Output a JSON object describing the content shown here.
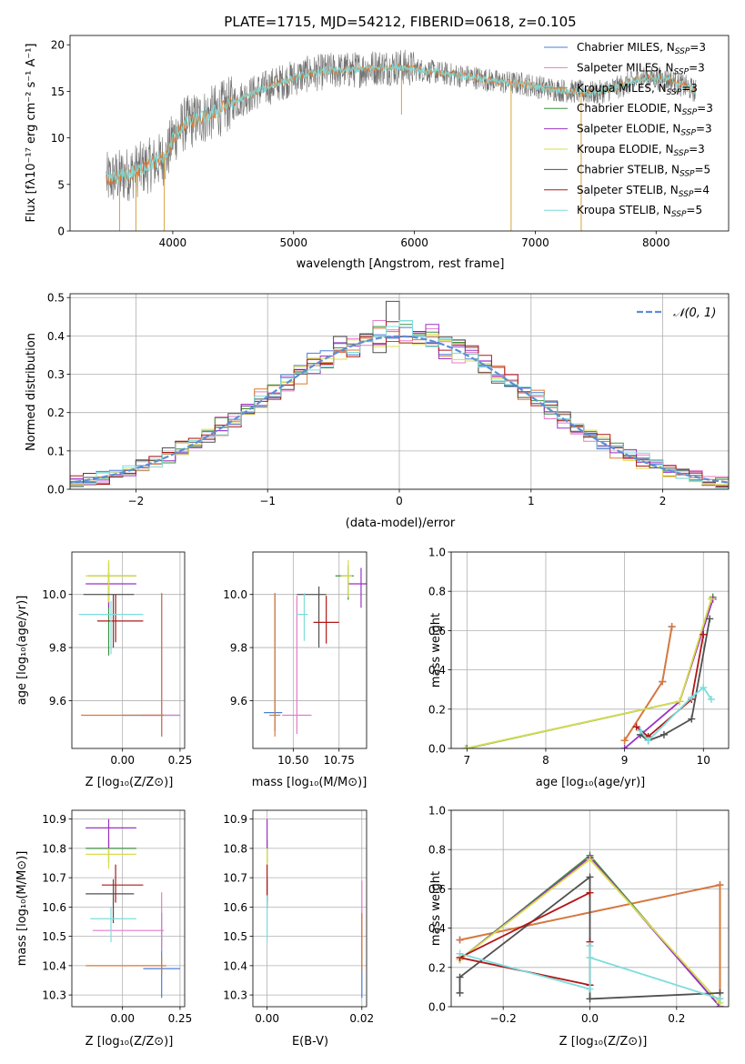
{
  "figure_title": "PLATE=1715, MJD=54212, FIBERID=0618, z=0.105",
  "colors": {
    "chabrier_miles": "#4a7fd6",
    "salpeter_miles": "#e67bc8",
    "kroupa_miles": "#d97a33",
    "chabrier_elodie": "#3f8f3f",
    "salpeter_elodie": "#9a33c4",
    "kroupa_elodie": "#d8dc4e",
    "chabrier_stelib": "#505050",
    "salpeter_stelib": "#b01818",
    "kroupa_stelib": "#7ddcdc",
    "gauss": "#5b8fd6"
  },
  "chart_data": [
    {
      "id": "spectrum",
      "type": "line",
      "title": "PLATE=1715, MJD=54212, FIBERID=0618, z=0.105",
      "xlabel": "wavelength [Angstrom, rest frame]",
      "ylabel": "Flux [fλ10⁻¹⁷ erg cm⁻² s⁻¹ A⁻¹]",
      "xlim": [
        3150,
        8600
      ],
      "ylim": [
        0,
        21
      ],
      "xticks": [
        "4000",
        "5000",
        "6000",
        "7000",
        "8000"
      ],
      "yticks": [
        "0",
        "5",
        "10",
        "15",
        "20"
      ],
      "legend_position": "upper-right",
      "series": [
        {
          "name": "Chabrier MILES, N_SSP=3",
          "color_key": "chabrier_miles"
        },
        {
          "name": "Salpeter MILES, N_SSP=3",
          "color_key": "salpeter_miles"
        },
        {
          "name": "Kroupa MILES, N_SSP=3",
          "color_key": "kroupa_miles"
        },
        {
          "name": "Chabrier ELODIE, N_SSP=3",
          "color_key": "chabrier_elodie"
        },
        {
          "name": "Salpeter ELODIE, N_SSP=3",
          "color_key": "salpeter_elodie"
        },
        {
          "name": "Kroupa ELODIE, N_SSP=3",
          "color_key": "kroupa_elodie"
        },
        {
          "name": "Chabrier STELIB, N_SSP=5",
          "color_key": "chabrier_stelib"
        },
        {
          "name": "Salpeter STELIB, N_SSP=4",
          "color_key": "salpeter_stelib"
        },
        {
          "name": "Kroupa STELIB, N_SSP=5",
          "color_key": "kroupa_stelib"
        }
      ],
      "continuum": {
        "x": [
          3450,
          3600,
          3800,
          3950,
          4000,
          4100,
          4300,
          4500,
          4700,
          4900,
          5100,
          5300,
          5500,
          5700,
          5900,
          6100,
          6300,
          6500,
          6700,
          6900,
          7100,
          7300,
          7500,
          7700,
          7900,
          8100,
          8330
        ],
        "y": [
          5.5,
          6,
          7,
          8,
          10,
          11.5,
          12.5,
          13.8,
          15,
          16,
          16.8,
          17.2,
          17.3,
          17.6,
          17.6,
          17.2,
          16.8,
          16.5,
          16.0,
          15.8,
          15.3,
          15.0,
          14.8,
          15.5,
          16.5,
          16.3,
          15.0
        ]
      },
      "dips": [
        {
          "x": 3560,
          "y": 0.0
        },
        {
          "x": 3695,
          "y": 0.0
        },
        {
          "x": 3930,
          "y": 0.0
        },
        {
          "x": 5893,
          "y": 12.5
        },
        {
          "x": 6800,
          "y": 0.0
        },
        {
          "x": 7380,
          "y": 0.0
        }
      ]
    },
    {
      "id": "residuals",
      "type": "line",
      "xlabel": "(data-model)/error",
      "ylabel": "Normed distribution",
      "xlim": [
        -2.5,
        2.5
      ],
      "ylim": [
        0,
        0.51
      ],
      "xticks": [
        "−2",
        "−1",
        "0",
        "1",
        "2"
      ],
      "yticks": [
        "0.0",
        "0.1",
        "0.2",
        "0.3",
        "0.4",
        "0.5"
      ],
      "legend": "𝒩(0, 1)",
      "legend_position": "upper-right",
      "gaussian": {
        "mean": 0,
        "sigma": 1
      }
    },
    {
      "id": "age_vs_Z",
      "type": "scatter",
      "xlabel": "Z [log₁₀(Z/Z⊙)]",
      "ylabel": "age  [log₁₀(age/yr)]",
      "xlim": [
        -0.22,
        0.27
      ],
      "ylim": [
        9.42,
        10.16
      ],
      "xticks": [
        "0.00",
        "0.25"
      ],
      "yticks": [
        "9.6",
        "9.8",
        "10.0"
      ],
      "points": [
        {
          "series": "Chabrier MILES, N_SSP=3",
          "x": 0.17,
          "y": 9.545,
          "x_err": [
            0.17,
            0.08
          ],
          "y_err": [
            0.08,
            0.46
          ]
        },
        {
          "series": "Salpeter MILES, N_SSP=3",
          "x": 0.17,
          "y": 9.545,
          "x_err": [
            0.09,
            0.08
          ],
          "y_err": [
            0.08,
            0.45
          ]
        },
        {
          "series": "Kroupa MILES, N_SSP=3",
          "x": 0.17,
          "y": 9.545,
          "x_err": [
            0.35,
            0.01
          ],
          "y_err": [
            0.08,
            0.46
          ]
        },
        {
          "series": "Chabrier ELODIE, N_SSP=3",
          "x": -0.06,
          "y": 10.07,
          "x_err": [
            0.09,
            0.12
          ],
          "y_err": [
            0.3,
            0.05
          ]
        },
        {
          "series": "Salpeter ELODIE, N_SSP=3",
          "x": -0.06,
          "y": 10.04,
          "x_err": [
            0.1,
            0.12
          ],
          "y_err": [
            0.09,
            0.04
          ]
        },
        {
          "series": "Kroupa ELODIE, N_SSP=3",
          "x": -0.06,
          "y": 10.07,
          "x_err": [
            0.1,
            0.12
          ],
          "y_err": [
            0.1,
            0.06
          ]
        },
        {
          "series": "Chabrier STELIB, N_SSP=5",
          "x": -0.04,
          "y": 10.0,
          "x_err": [
            0.13,
            0.09
          ],
          "y_err": [
            0.2,
            0.0
          ]
        },
        {
          "series": "Salpeter STELIB, N_SSP=4",
          "x": -0.03,
          "y": 9.9,
          "x_err": [
            0.08,
            0.12
          ],
          "y_err": [
            0.08,
            0.1
          ]
        },
        {
          "series": "Kroupa STELIB, N_SSP=5",
          "x": -0.05,
          "y": 9.925,
          "x_err": [
            0.14,
            0.14
          ],
          "y_err": [
            0.15,
            0.05
          ]
        }
      ]
    },
    {
      "id": "age_vs_mass",
      "type": "scatter",
      "xlabel": "mass [log₁₀(M/M⊙)]",
      "ylabel": "",
      "xlim": [
        10.28,
        10.9
      ],
      "ylim": [
        9.42,
        10.16
      ],
      "xticks": [
        "10.50",
        "10.75"
      ],
      "yticks": [
        "9.6",
        "9.8",
        "10.0"
      ],
      "points": [
        {
          "series": "Chabrier MILES, N_SSP=3",
          "x": 10.4,
          "y": 9.555,
          "x_err": [
            0.06,
            0.04
          ],
          "y_err": [
            0.07,
            0.45
          ]
        },
        {
          "series": "Salpeter MILES, N_SSP=3",
          "x": 10.52,
          "y": 9.545,
          "x_err": [
            0.08,
            0.08
          ],
          "y_err": [
            0.07,
            0.45
          ]
        },
        {
          "series": "Kroupa MILES, N_SSP=3",
          "x": 10.4,
          "y": 9.545,
          "x_err": [
            0.03,
            0.03
          ],
          "y_err": [
            0.08,
            0.46
          ]
        },
        {
          "series": "Chabrier ELODIE, N_SSP=3",
          "x": 10.8,
          "y": 10.07,
          "x_err": [
            0.07,
            0.03
          ],
          "y_err": [
            0.09,
            0.04
          ]
        },
        {
          "series": "Salpeter ELODIE, N_SSP=3",
          "x": 10.87,
          "y": 10.04,
          "x_err": [
            0.07,
            0.03
          ],
          "y_err": [
            0.09,
            0.06
          ]
        },
        {
          "series": "Kroupa ELODIE, N_SSP=3",
          "x": 10.8,
          "y": 10.07,
          "x_err": [
            0.04,
            0.02
          ],
          "y_err": [
            0.08,
            0.06
          ]
        },
        {
          "series": "Chabrier STELIB, N_SSP=5",
          "x": 10.64,
          "y": 10.0,
          "x_err": [
            0.12,
            0.04
          ],
          "y_err": [
            0.2,
            0.03
          ]
        },
        {
          "series": "Salpeter STELIB, N_SSP=4",
          "x": 10.68,
          "y": 9.895,
          "x_err": [
            0.07,
            0.07
          ],
          "y_err": [
            0.08,
            0.1
          ]
        },
        {
          "series": "Kroupa STELIB, N_SSP=5",
          "x": 10.56,
          "y": 9.925,
          "x_err": [
            0.04,
            0.02
          ],
          "y_err": [
            0.1,
            0.08
          ]
        }
      ]
    },
    {
      "id": "weight_vs_age",
      "type": "line",
      "xlabel": "age  [log₁₀(age/yr)]",
      "ylabel": "mass weight",
      "xlim": [
        6.8,
        10.32
      ],
      "ylim": [
        0.0,
        1.0
      ],
      "xticks": [
        "7",
        "8",
        "9",
        "10"
      ],
      "yticks": [
        "0.0",
        "0.2",
        "0.4",
        "0.6",
        "0.8",
        "1.0"
      ],
      "series": [
        {
          "name": "Chabrier MILES, N_SSP=3",
          "x": [
            9.0,
            9.48,
            9.6
          ],
          "y": [
            0.04,
            0.34,
            0.62
          ]
        },
        {
          "name": "Salpeter MILES, N_SSP=3",
          "x": [
            9.0,
            9.48,
            9.6
          ],
          "y": [
            0.04,
            0.34,
            0.62
          ]
        },
        {
          "name": "Kroupa MILES, N_SSP=3",
          "x": [
            9.0,
            9.48,
            9.6
          ],
          "y": [
            0.04,
            0.34,
            0.62
          ]
        },
        {
          "name": "Chabrier ELODIE, N_SSP=3",
          "x": [
            7.0,
            9.7,
            10.12
          ],
          "y": [
            0.0,
            0.24,
            0.77
          ]
        },
        {
          "name": "Salpeter ELODIE, N_SSP=3",
          "x": [
            9.0,
            9.7,
            10.12
          ],
          "y": [
            0.0,
            0.24,
            0.76
          ]
        },
        {
          "name": "Kroupa ELODIE, N_SSP=3",
          "x": [
            6.98,
            9.7,
            10.1
          ],
          "y": [
            0.0,
            0.24,
            0.76
          ]
        },
        {
          "name": "Chabrier STELIB, N_SSP=5",
          "x": [
            9.2,
            9.3,
            9.5,
            9.85,
            10.08
          ],
          "y": [
            0.07,
            0.04,
            0.07,
            0.15,
            0.66
          ]
        },
        {
          "name": "Salpeter STELIB, N_SSP=4",
          "x": [
            9.15,
            9.3,
            9.85,
            10.0
          ],
          "y": [
            0.11,
            0.06,
            0.25,
            0.58
          ]
        },
        {
          "name": "Kroupa STELIB, N_SSP=5",
          "x": [
            9.2,
            9.3,
            9.85,
            10.0,
            10.1
          ],
          "y": [
            0.09,
            0.04,
            0.26,
            0.31,
            0.25
          ]
        }
      ]
    },
    {
      "id": "mass_vs_Z",
      "type": "scatter",
      "xlabel": "Z [log₁₀(Z/Z⊙)]",
      "ylabel": "mass [log₁₀(M/M⊙)]",
      "xlim": [
        -0.22,
        0.27
      ],
      "ylim": [
        10.26,
        10.93
      ],
      "xticks": [
        "0.00",
        "0.25"
      ],
      "yticks": [
        "10.3",
        "10.4",
        "10.5",
        "10.6",
        "10.7",
        "10.8",
        "10.9"
      ],
      "points": [
        {
          "series": "Chabrier MILES, N_SSP=3",
          "x": 0.17,
          "y": 10.39,
          "x_err": [
            0.08,
            0.08
          ],
          "y_err": [
            0.1,
            0.19
          ]
        },
        {
          "series": "Salpeter MILES, N_SSP=3",
          "x": 0.17,
          "y": 10.52,
          "x_err": [
            0.3,
            0.01
          ],
          "y_err": [
            0.07,
            0.13
          ]
        },
        {
          "series": "Kroupa MILES, N_SSP=3",
          "x": 0.17,
          "y": 10.4,
          "x_err": [
            0.33,
            0.02
          ],
          "y_err": [
            0.03,
            0.03
          ]
        },
        {
          "series": "Chabrier ELODIE, N_SSP=3",
          "x": -0.06,
          "y": 10.8,
          "x_err": [
            0.1,
            0.12
          ],
          "y_err": [
            0.05,
            0.03
          ]
        },
        {
          "series": "Salpeter ELODIE, N_SSP=3",
          "x": -0.06,
          "y": 10.87,
          "x_err": [
            0.1,
            0.12
          ],
          "y_err": [
            0.07,
            0.03
          ]
        },
        {
          "series": "Kroupa ELODIE, N_SSP=3",
          "x": -0.06,
          "y": 10.78,
          "x_err": [
            0.1,
            0.12
          ],
          "y_err": [
            0.05,
            0.02
          ]
        },
        {
          "series": "Chabrier STELIB, N_SSP=5",
          "x": -0.04,
          "y": 10.645,
          "x_err": [
            0.12,
            0.09
          ],
          "y_err": [
            0.1,
            0.05
          ]
        },
        {
          "series": "Salpeter STELIB, N_SSP=4",
          "x": -0.03,
          "y": 10.675,
          "x_err": [
            0.06,
            0.12
          ],
          "y_err": [
            0.06,
            0.07
          ]
        },
        {
          "series": "Kroupa STELIB, N_SSP=5",
          "x": -0.05,
          "y": 10.56,
          "x_err": [
            0.09,
            0.11
          ],
          "y_err": [
            0.08,
            0.04
          ]
        }
      ]
    },
    {
      "id": "mass_vs_ebv",
      "type": "scatter",
      "xlabel": "E(B-V)",
      "ylabel": "",
      "xlim": [
        -0.003,
        0.021
      ],
      "ylim": [
        10.26,
        10.93
      ],
      "xticks": [
        "0.00",
        "0.02"
      ],
      "yticks": [
        "10.3",
        "10.4",
        "10.5",
        "10.6",
        "10.7",
        "10.8",
        "10.9"
      ],
      "points": [
        {
          "series": "Chabrier MILES, N_SSP=3",
          "x": 0.02,
          "y": 10.39,
          "x_err": [
            0.0,
            0.0
          ],
          "y_err": [
            0.1,
            0.19
          ]
        },
        {
          "series": "Salpeter MILES, N_SSP=3",
          "x": 0.02,
          "y": 10.52,
          "x_err": [
            0.0,
            0.0
          ],
          "y_err": [
            0.07,
            0.17
          ]
        },
        {
          "series": "Kroupa MILES, N_SSP=3",
          "x": 0.02,
          "y": 10.4,
          "x_err": [
            0.0,
            0.0
          ],
          "y_err": [
            0.02,
            0.18
          ]
        },
        {
          "series": "Chabrier ELODIE, N_SSP=3",
          "x": 0.0,
          "y": 10.8,
          "x_err": [
            0.0,
            0.0
          ],
          "y_err": [
            0.05,
            0.03
          ]
        },
        {
          "series": "Salpeter ELODIE, N_SSP=3",
          "x": 0.0,
          "y": 10.87,
          "x_err": [
            0.0,
            0.0
          ],
          "y_err": [
            0.07,
            0.03
          ]
        },
        {
          "series": "Kroupa ELODIE, N_SSP=3",
          "x": 0.0,
          "y": 10.78,
          "x_err": [
            0.0,
            0.0
          ],
          "y_err": [
            0.05,
            0.02
          ]
        },
        {
          "series": "Chabrier STELIB, N_SSP=5",
          "x": 0.0,
          "y": 10.645,
          "x_err": [
            0.0,
            0.0
          ],
          "y_err": [
            0.05,
            0.05
          ]
        },
        {
          "series": "Salpeter STELIB, N_SSP=4",
          "x": 0.0,
          "y": 10.675,
          "x_err": [
            0.0,
            0.0
          ],
          "y_err": [
            0.06,
            0.07
          ]
        },
        {
          "series": "Kroupa STELIB, N_SSP=5",
          "x": 0.0,
          "y": 10.56,
          "x_err": [
            0.0,
            0.0
          ],
          "y_err": [
            0.08,
            0.08
          ]
        }
      ]
    },
    {
      "id": "weight_vs_Z",
      "type": "line",
      "xlabel": "Z [log₁₀(Z/Z⊙)]",
      "ylabel": "mass weight",
      "xlim": [
        -0.32,
        0.32
      ],
      "ylim": [
        0.0,
        1.0
      ],
      "xticks": [
        "−0.2",
        "0.0",
        "0.2"
      ],
      "yticks": [
        "0.0",
        "0.2",
        "0.4",
        "0.6",
        "0.8",
        "1.0"
      ],
      "series": [
        {
          "name": "Chabrier MILES, N_SSP=3",
          "x": [
            -0.3,
            0.3,
            0.3
          ],
          "y": [
            0.34,
            0.62,
            0.04
          ]
        },
        {
          "name": "Salpeter MILES, N_SSP=3",
          "x": [
            -0.3,
            0.3,
            0.3
          ],
          "y": [
            0.34,
            0.62,
            0.04
          ]
        },
        {
          "name": "Kroupa MILES, N_SSP=3",
          "x": [
            -0.3,
            0.3,
            0.3
          ],
          "y": [
            0.34,
            0.62,
            0.04
          ]
        },
        {
          "name": "Chabrier ELODIE, N_SSP=3",
          "x": [
            -0.3,
            0.0,
            0.3
          ],
          "y": [
            0.24,
            0.77,
            0.0
          ]
        },
        {
          "name": "Salpeter ELODIE, N_SSP=3",
          "x": [
            -0.3,
            0.0,
            0.3
          ],
          "y": [
            0.24,
            0.76,
            0.0
          ]
        },
        {
          "name": "Kroupa ELODIE, N_SSP=3",
          "x": [
            -0.3,
            0.0,
            0.3
          ],
          "y": [
            0.24,
            0.75,
            0.02
          ]
        },
        {
          "name": "Chabrier STELIB, N_SSP=5",
          "x": [
            -0.3,
            -0.3,
            0.0,
            0.0,
            0.3
          ],
          "y": [
            0.07,
            0.15,
            0.66,
            0.04,
            0.07
          ]
        },
        {
          "name": "Salpeter STELIB, N_SSP=4",
          "x": [
            0.0,
            -0.3,
            0.0,
            0.0
          ],
          "y": [
            0.58,
            0.25,
            0.11,
            0.33
          ]
        },
        {
          "name": "Kroupa STELIB, N_SSP=5",
          "x": [
            -0.3,
            0.0,
            0.0,
            0.0,
            0.3
          ],
          "y": [
            0.27,
            0.09,
            0.31,
            0.25,
            0.04
          ]
        }
      ]
    }
  ]
}
